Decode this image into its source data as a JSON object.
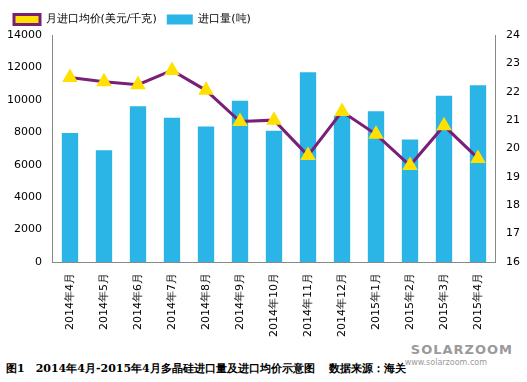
{
  "chart_data": {
    "type": "bar",
    "title": "图1　2014年4月-2015年4月多晶硅进口量及进口均价示意图",
    "annotations": [
      "数据来源：海关",
      "SOLARZOOM",
      "www.solarzoom.com"
    ],
    "categories": [
      "2014年4月",
      "2014年5月",
      "2014年6月",
      "2014年7月",
      "2014年8月",
      "2014年9月",
      "2014年10月",
      "2014年11月",
      "2014年12月",
      "2015年1月",
      "2015年2月",
      "2015年3月",
      "2015年4月"
    ],
    "series": [
      {
        "name": "进口量(吨)",
        "type": "bar",
        "color": "#2bb5e6",
        "values": [
          7950,
          6900,
          9600,
          8900,
          8350,
          9950,
          8100,
          11700,
          9000,
          9300,
          7550,
          10250,
          10900
        ]
      },
      {
        "name": "月进口均价(美元/千克)",
        "type": "line",
        "axis": "y2",
        "color": "#7a1f78",
        "marker": "triangle",
        "values": [
          22.5,
          22.35,
          22.25,
          22.75,
          22.05,
          20.95,
          21.0,
          19.75,
          21.3,
          20.5,
          19.4,
          20.8,
          19.65
        ]
      }
    ],
    "ylim": [
      0,
      14000
    ],
    "yticks": [
      0,
      2000,
      4000,
      6000,
      8000,
      10000,
      12000,
      14000
    ],
    "y2lim": [
      16,
      24
    ],
    "y2ticks": [
      16,
      17,
      18,
      19,
      20,
      21,
      22,
      23,
      24
    ],
    "grid": false,
    "legend": "top left"
  }
}
